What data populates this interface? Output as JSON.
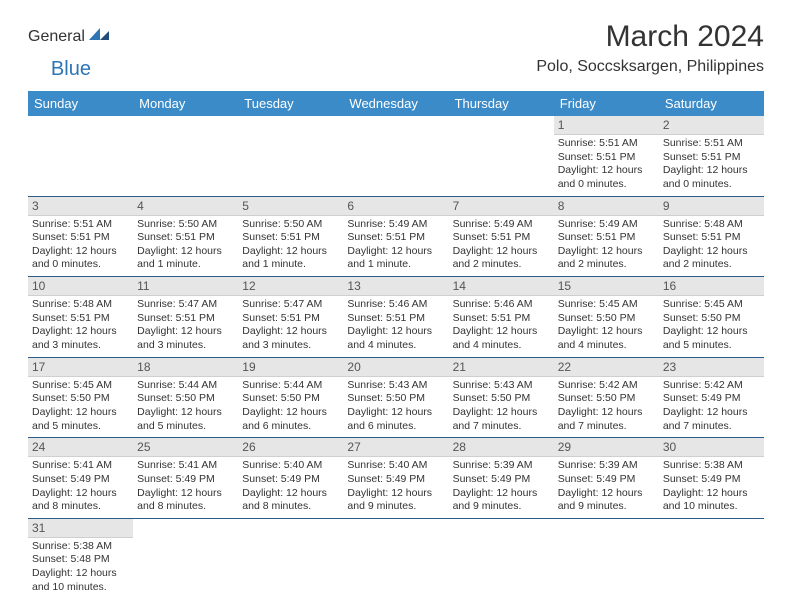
{
  "logo": {
    "text1": "General",
    "text2": "Blue"
  },
  "title": "March 2024",
  "location": "Polo, Soccsksargen, Philippines",
  "colors": {
    "header_bg": "#3b8bc9",
    "header_text": "#ffffff",
    "daynum_bg": "#e6e6e6",
    "border": "#2e5c8a",
    "logo_blue": "#2e75b6"
  },
  "day_headers": [
    "Sunday",
    "Monday",
    "Tuesday",
    "Wednesday",
    "Thursday",
    "Friday",
    "Saturday"
  ],
  "weeks": [
    [
      null,
      null,
      null,
      null,
      null,
      {
        "n": "1",
        "sr": "5:51 AM",
        "ss": "5:51 PM",
        "dl": "12 hours and 0 minutes."
      },
      {
        "n": "2",
        "sr": "5:51 AM",
        "ss": "5:51 PM",
        "dl": "12 hours and 0 minutes."
      }
    ],
    [
      {
        "n": "3",
        "sr": "5:51 AM",
        "ss": "5:51 PM",
        "dl": "12 hours and 0 minutes."
      },
      {
        "n": "4",
        "sr": "5:50 AM",
        "ss": "5:51 PM",
        "dl": "12 hours and 1 minute."
      },
      {
        "n": "5",
        "sr": "5:50 AM",
        "ss": "5:51 PM",
        "dl": "12 hours and 1 minute."
      },
      {
        "n": "6",
        "sr": "5:49 AM",
        "ss": "5:51 PM",
        "dl": "12 hours and 1 minute."
      },
      {
        "n": "7",
        "sr": "5:49 AM",
        "ss": "5:51 PM",
        "dl": "12 hours and 2 minutes."
      },
      {
        "n": "8",
        "sr": "5:49 AM",
        "ss": "5:51 PM",
        "dl": "12 hours and 2 minutes."
      },
      {
        "n": "9",
        "sr": "5:48 AM",
        "ss": "5:51 PM",
        "dl": "12 hours and 2 minutes."
      }
    ],
    [
      {
        "n": "10",
        "sr": "5:48 AM",
        "ss": "5:51 PM",
        "dl": "12 hours and 3 minutes."
      },
      {
        "n": "11",
        "sr": "5:47 AM",
        "ss": "5:51 PM",
        "dl": "12 hours and 3 minutes."
      },
      {
        "n": "12",
        "sr": "5:47 AM",
        "ss": "5:51 PM",
        "dl": "12 hours and 3 minutes."
      },
      {
        "n": "13",
        "sr": "5:46 AM",
        "ss": "5:51 PM",
        "dl": "12 hours and 4 minutes."
      },
      {
        "n": "14",
        "sr": "5:46 AM",
        "ss": "5:51 PM",
        "dl": "12 hours and 4 minutes."
      },
      {
        "n": "15",
        "sr": "5:45 AM",
        "ss": "5:50 PM",
        "dl": "12 hours and 4 minutes."
      },
      {
        "n": "16",
        "sr": "5:45 AM",
        "ss": "5:50 PM",
        "dl": "12 hours and 5 minutes."
      }
    ],
    [
      {
        "n": "17",
        "sr": "5:45 AM",
        "ss": "5:50 PM",
        "dl": "12 hours and 5 minutes."
      },
      {
        "n": "18",
        "sr": "5:44 AM",
        "ss": "5:50 PM",
        "dl": "12 hours and 5 minutes."
      },
      {
        "n": "19",
        "sr": "5:44 AM",
        "ss": "5:50 PM",
        "dl": "12 hours and 6 minutes."
      },
      {
        "n": "20",
        "sr": "5:43 AM",
        "ss": "5:50 PM",
        "dl": "12 hours and 6 minutes."
      },
      {
        "n": "21",
        "sr": "5:43 AM",
        "ss": "5:50 PM",
        "dl": "12 hours and 7 minutes."
      },
      {
        "n": "22",
        "sr": "5:42 AM",
        "ss": "5:50 PM",
        "dl": "12 hours and 7 minutes."
      },
      {
        "n": "23",
        "sr": "5:42 AM",
        "ss": "5:49 PM",
        "dl": "12 hours and 7 minutes."
      }
    ],
    [
      {
        "n": "24",
        "sr": "5:41 AM",
        "ss": "5:49 PM",
        "dl": "12 hours and 8 minutes."
      },
      {
        "n": "25",
        "sr": "5:41 AM",
        "ss": "5:49 PM",
        "dl": "12 hours and 8 minutes."
      },
      {
        "n": "26",
        "sr": "5:40 AM",
        "ss": "5:49 PM",
        "dl": "12 hours and 8 minutes."
      },
      {
        "n": "27",
        "sr": "5:40 AM",
        "ss": "5:49 PM",
        "dl": "12 hours and 9 minutes."
      },
      {
        "n": "28",
        "sr": "5:39 AM",
        "ss": "5:49 PM",
        "dl": "12 hours and 9 minutes."
      },
      {
        "n": "29",
        "sr": "5:39 AM",
        "ss": "5:49 PM",
        "dl": "12 hours and 9 minutes."
      },
      {
        "n": "30",
        "sr": "5:38 AM",
        "ss": "5:49 PM",
        "dl": "12 hours and 10 minutes."
      }
    ],
    [
      {
        "n": "31",
        "sr": "5:38 AM",
        "ss": "5:48 PM",
        "dl": "12 hours and 10 minutes."
      },
      null,
      null,
      null,
      null,
      null,
      null
    ]
  ],
  "labels": {
    "sunrise": "Sunrise: ",
    "sunset": "Sunset: ",
    "daylight": "Daylight: "
  }
}
